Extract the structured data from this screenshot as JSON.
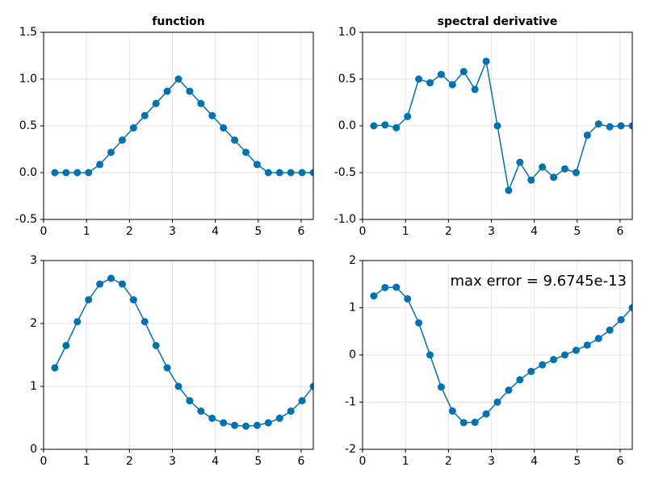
{
  "chart_data": [
    {
      "type": "line",
      "title": "function",
      "x": [
        0.2618,
        0.5236,
        0.7854,
        1.0472,
        1.309,
        1.5708,
        1.8326,
        2.0944,
        2.3562,
        2.618,
        2.8798,
        3.1416,
        3.4034,
        3.6652,
        3.927,
        4.1888,
        4.4506,
        4.7124,
        4.9742,
        5.236,
        5.4978,
        5.7596,
        6.0214,
        6.2832
      ],
      "values": [
        0,
        0,
        0,
        0,
        0.087,
        0.217,
        0.348,
        0.478,
        0.609,
        0.739,
        0.87,
        1.0,
        0.87,
        0.739,
        0.609,
        0.478,
        0.348,
        0.217,
        0.087,
        0,
        0,
        0,
        0,
        0
      ],
      "color": "#0072b2",
      "xlim": [
        0,
        6.2832
      ],
      "xticks": [
        0,
        1,
        2,
        3,
        4,
        5,
        6
      ],
      "ylim": [
        -0.5,
        1.5
      ],
      "yticks": [
        -0.5,
        {
          "value": 0,
          "label": "0.0"
        },
        0.5,
        {
          "value": 1,
          "label": "1.0"
        },
        1.5
      ],
      "grid": true
    },
    {
      "type": "line",
      "title": "spectral derivative",
      "x": [
        0.2618,
        0.5236,
        0.7854,
        1.0472,
        1.309,
        1.5708,
        1.8326,
        2.0944,
        2.3562,
        2.618,
        2.8798,
        3.1416,
        3.4034,
        3.6652,
        3.927,
        4.1888,
        4.4506,
        4.7124,
        4.9742,
        5.236,
        5.4978,
        5.7596,
        6.0214,
        6.2832
      ],
      "values": [
        0,
        0.01,
        -0.02,
        0.1,
        0.5,
        0.46,
        0.55,
        0.44,
        0.58,
        0.39,
        0.69,
        0,
        -0.69,
        -0.39,
        -0.58,
        -0.44,
        -0.55,
        -0.46,
        -0.5,
        -0.1,
        0.02,
        -0.01,
        0,
        0
      ],
      "color": "#0072b2",
      "xlim": [
        0,
        6.2832
      ],
      "xticks": [
        0,
        1,
        2,
        3,
        4,
        5,
        6
      ],
      "ylim": [
        -1,
        1
      ],
      "yticks": [
        {
          "value": -1,
          "label": "-1.0"
        },
        -0.5,
        {
          "value": 0,
          "label": "0.0"
        },
        0.5,
        {
          "value": 1,
          "label": "1.0"
        }
      ],
      "grid": true
    },
    {
      "type": "line",
      "x": [
        0.2618,
        0.5236,
        0.7854,
        1.0472,
        1.309,
        1.5708,
        1.8326,
        2.0944,
        2.3562,
        2.618,
        2.8798,
        3.1416,
        3.4034,
        3.6652,
        3.927,
        4.1888,
        4.4506,
        4.7124,
        4.9742,
        5.236,
        5.4978,
        5.7596,
        6.0214,
        6.2832
      ],
      "values": [
        1.295,
        1.649,
        2.028,
        2.377,
        2.627,
        2.718,
        2.627,
        2.377,
        2.028,
        1.649,
        1.295,
        1.0,
        0.772,
        0.607,
        0.493,
        0.421,
        0.381,
        0.368,
        0.381,
        0.421,
        0.493,
        0.607,
        0.772,
        1.0
      ],
      "color": "#0072b2",
      "xlim": [
        0,
        6.2832
      ],
      "xticks": [
        0,
        1,
        2,
        3,
        4,
        5,
        6
      ],
      "ylim": [
        0,
        3
      ],
      "yticks": [
        0,
        1,
        2,
        3
      ],
      "grid": true
    },
    {
      "type": "line",
      "annotation": "max error = 9.6745e-13",
      "x": [
        0.2618,
        0.5236,
        0.7854,
        1.0472,
        1.309,
        1.5708,
        1.8326,
        2.0944,
        2.3562,
        2.618,
        2.8798,
        3.1416,
        3.4034,
        3.6652,
        3.927,
        4.1888,
        4.4506,
        4.7124,
        4.9742,
        5.236,
        5.4978,
        5.7596,
        6.0214,
        6.2832
      ],
      "values": [
        1.251,
        1.428,
        1.434,
        1.189,
        0.68,
        0,
        -0.68,
        -1.189,
        -1.434,
        -1.428,
        -1.251,
        -1.0,
        -0.746,
        -0.526,
        -0.349,
        -0.21,
        -0.099,
        0,
        0.099,
        0.21,
        0.349,
        0.526,
        0.746,
        1.0
      ],
      "color": "#0072b2",
      "xlim": [
        0,
        6.2832
      ],
      "xticks": [
        0,
        1,
        2,
        3,
        4,
        5,
        6
      ],
      "ylim": [
        -2,
        2
      ],
      "yticks": [
        -2,
        -1,
        0,
        1,
        2
      ],
      "grid": true
    }
  ]
}
